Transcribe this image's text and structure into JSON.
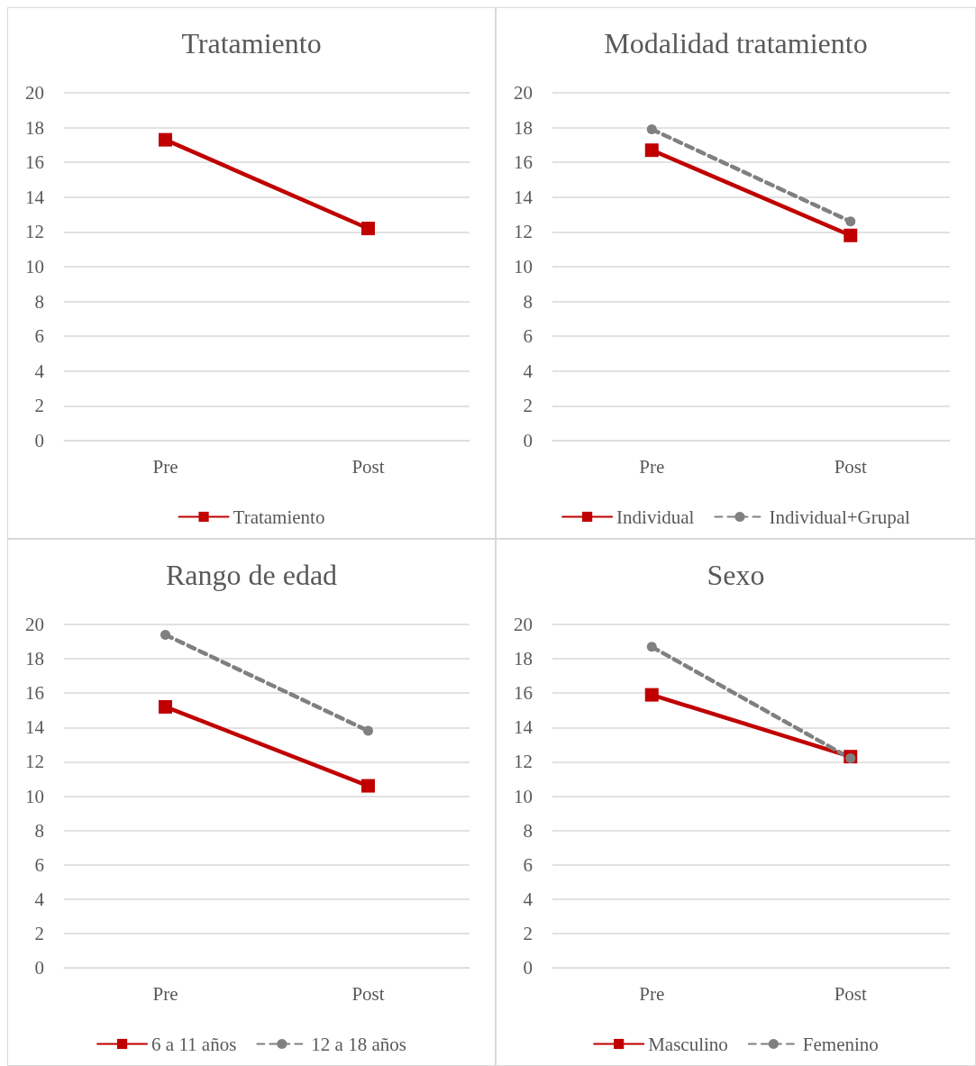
{
  "chart_data": [
    {
      "type": "line",
      "title": "Tratamiento",
      "categories": [
        "Pre",
        "Post"
      ],
      "series": [
        {
          "name": "Tratamiento",
          "color": "#c00000",
          "values": [
            17.3,
            12.2
          ],
          "marker": "square",
          "line_style": "solid"
        }
      ],
      "ylim": [
        0,
        20
      ],
      "yticks": [
        0,
        2,
        4,
        6,
        8,
        10,
        12,
        14,
        16,
        18,
        20
      ],
      "grid": "y",
      "legend": "bottom"
    },
    {
      "type": "line",
      "title": "Modalidad tratamiento",
      "categories": [
        "Pre",
        "Post"
      ],
      "series": [
        {
          "name": "Individual",
          "color": "#c00000",
          "values": [
            16.7,
            11.8
          ],
          "marker": "square",
          "line_style": "solid"
        },
        {
          "name": "Individual+Grupal",
          "color": "#808080",
          "values": [
            17.9,
            12.6
          ],
          "marker": "circle",
          "line_style": "dashed"
        }
      ],
      "ylim": [
        0,
        20
      ],
      "yticks": [
        0,
        2,
        4,
        6,
        8,
        10,
        12,
        14,
        16,
        18,
        20
      ],
      "grid": "y",
      "legend": "bottom"
    },
    {
      "type": "line",
      "title": "Rango de edad",
      "categories": [
        "Pre",
        "Post"
      ],
      "series": [
        {
          "name": "6 a 11 años",
          "color": "#c00000",
          "values": [
            15.2,
            10.6
          ],
          "marker": "square",
          "line_style": "solid"
        },
        {
          "name": "12 a 18 años",
          "color": "#808080",
          "values": [
            19.4,
            13.8
          ],
          "marker": "circle",
          "line_style": "dashed"
        }
      ],
      "ylim": [
        0,
        20
      ],
      "yticks": [
        0,
        2,
        4,
        6,
        8,
        10,
        12,
        14,
        16,
        18,
        20
      ],
      "grid": "y",
      "legend": "bottom"
    },
    {
      "type": "line",
      "title": "Sexo",
      "categories": [
        "Pre",
        "Post"
      ],
      "series": [
        {
          "name": "Masculino",
          "color": "#c00000",
          "values": [
            15.9,
            12.3
          ],
          "marker": "square",
          "line_style": "solid"
        },
        {
          "name": "Femenino",
          "color": "#808080",
          "values": [
            18.7,
            12.2
          ],
          "marker": "circle",
          "line_style": "dashed"
        }
      ],
      "ylim": [
        0,
        20
      ],
      "yticks": [
        0,
        2,
        4,
        6,
        8,
        10,
        12,
        14,
        16,
        18,
        20
      ],
      "grid": "y",
      "legend": "bottom"
    }
  ]
}
